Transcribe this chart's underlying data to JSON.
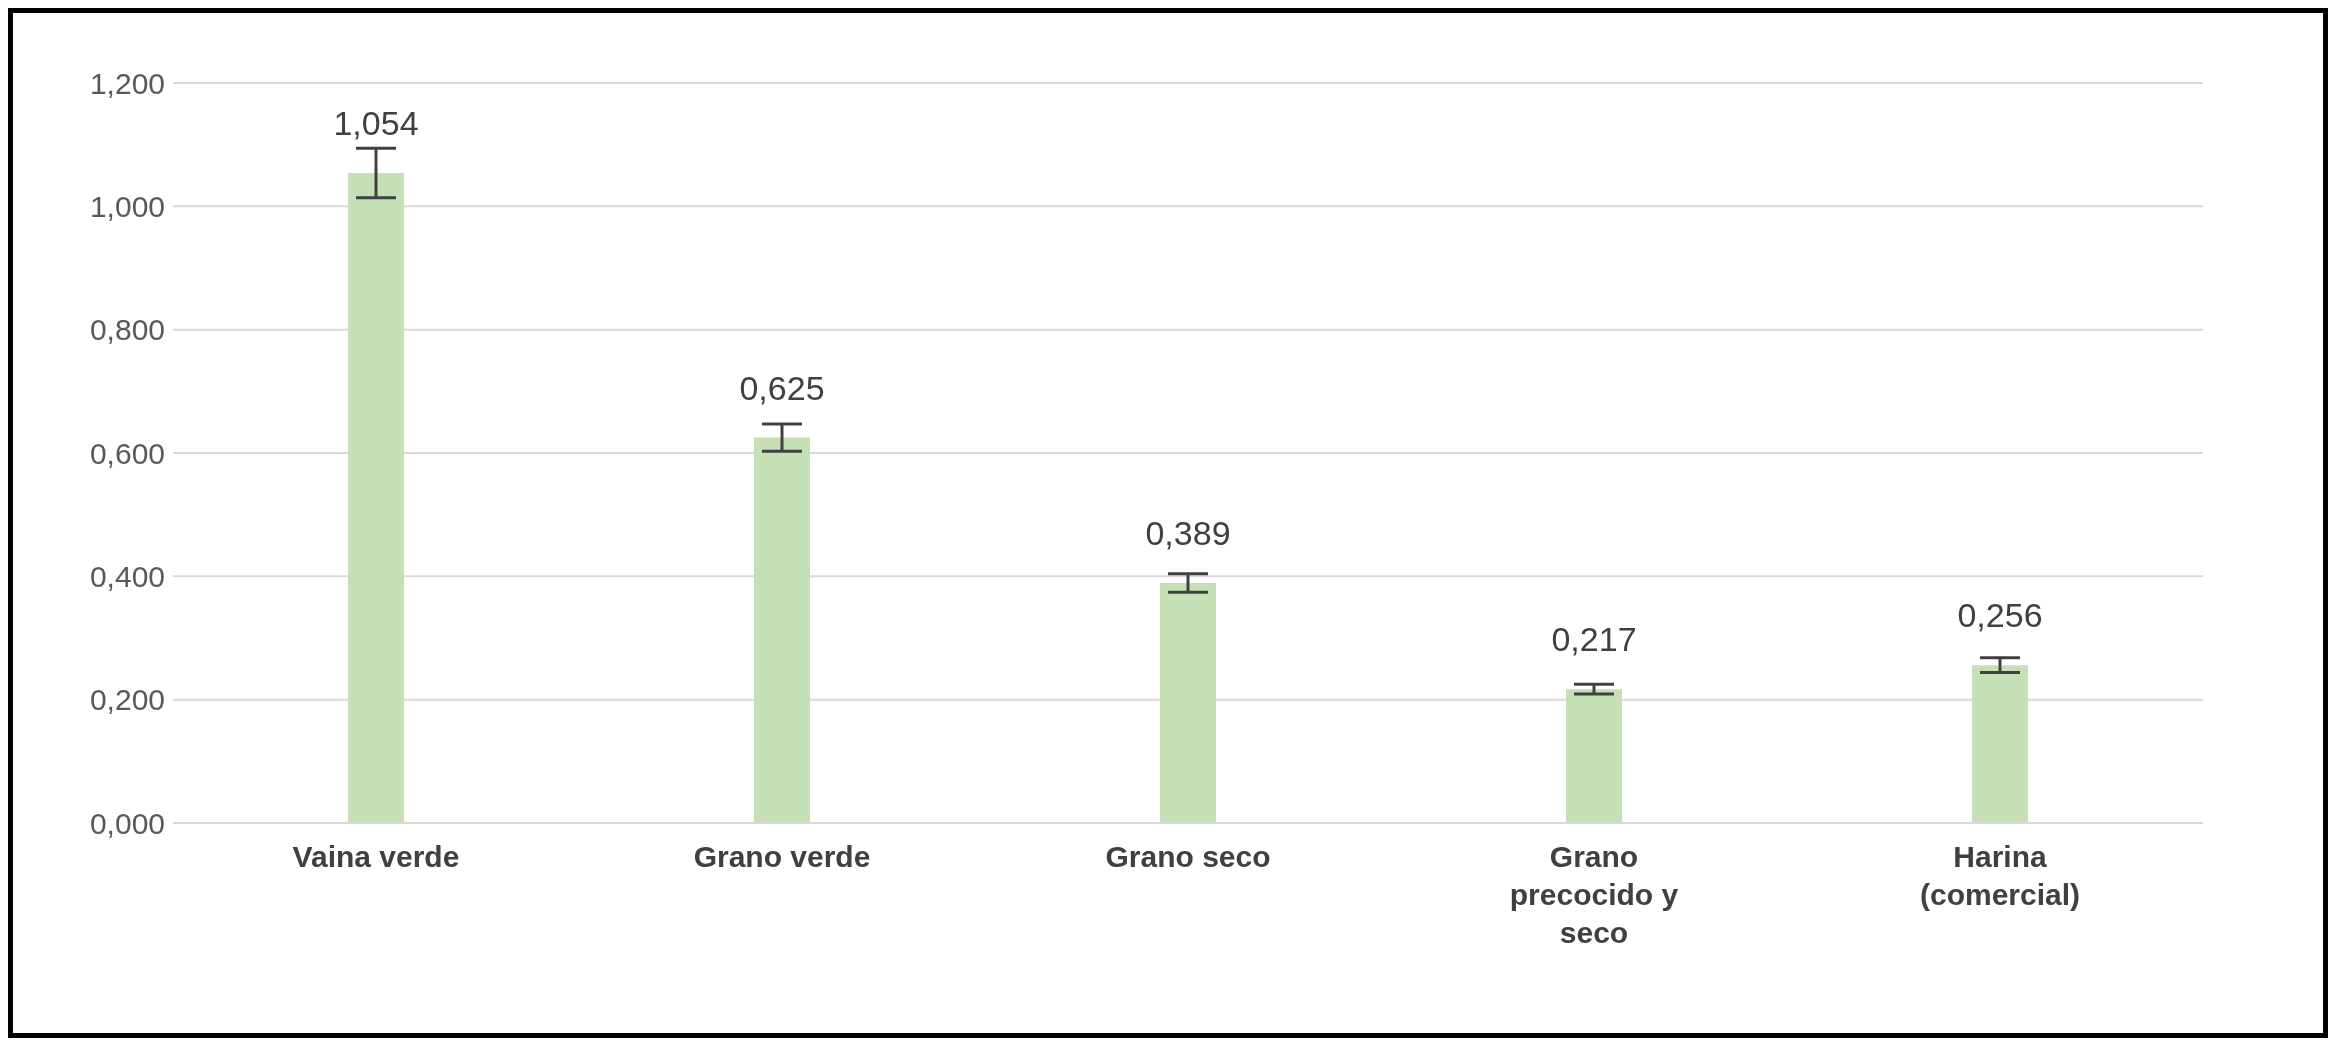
{
  "chart_data": {
    "type": "bar",
    "categories": [
      "Vaina verde",
      "Grano verde",
      "Grano seco",
      "Grano precocido y seco",
      "Harina (comercial)"
    ],
    "values": [
      1.054,
      0.625,
      0.389,
      0.217,
      0.256
    ],
    "errors": [
      0.04,
      0.022,
      0.015,
      0.008,
      0.012
    ],
    "value_labels": [
      "1,054",
      "0,625",
      "0,389",
      "0,217",
      "0,256"
    ],
    "color": "#c5e0b4",
    "ylim": [
      0,
      1.2
    ],
    "yticks": [
      {
        "value": 0,
        "label": "0,000"
      },
      {
        "value": 0.2,
        "label": "0,200"
      },
      {
        "value": 0.4,
        "label": "0,400"
      },
      {
        "value": 0.6,
        "label": "0,600"
      },
      {
        "value": 0.8,
        "label": "0,800"
      },
      {
        "value": 1,
        "label": "1,000"
      },
      {
        "value": 1.2,
        "label": "1,200"
      }
    ],
    "grid": "y",
    "legend": false
  }
}
